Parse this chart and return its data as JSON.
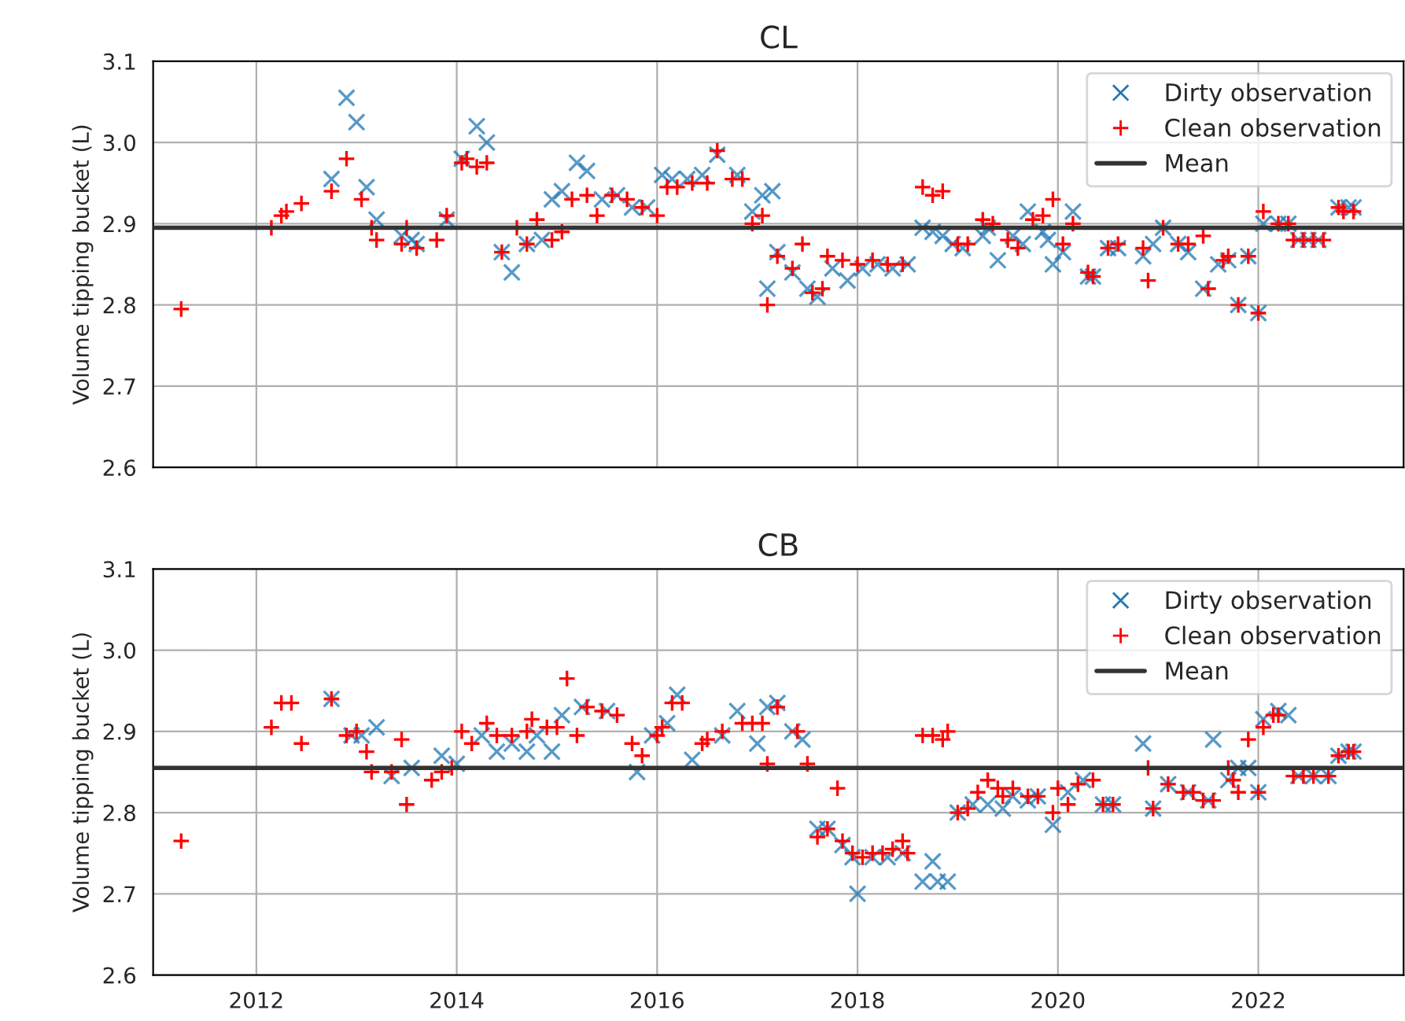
{
  "chart_data": [
    {
      "type": "scatter",
      "title": "CL",
      "ylabel": "Volume tipping bucket (L)",
      "xlim": [
        2010.97,
        2023.45
      ],
      "xticks": [
        2012,
        2014,
        2016,
        2018,
        2020,
        2022
      ],
      "ylim": [
        2.6,
        3.1
      ],
      "yticks": [
        2.6,
        2.7,
        2.8,
        2.9,
        {
          "value": 3,
          "label": "3.0"
        },
        3.1
      ],
      "grid": true,
      "legend": "top right",
      "tick_labels": "y",
      "series": [
        {
          "name": "Dirty observation",
          "color": "#1f77b4",
          "marker": "cross",
          "x": [
            2012.75,
            2012.9,
            2013.0,
            2013.1,
            2013.2,
            2013.45,
            2013.55,
            2013.6,
            2013.9,
            2014.05,
            2014.2,
            2014.3,
            2014.45,
            2014.55,
            2014.7,
            2014.85,
            2014.95,
            2015.05,
            2015.2,
            2015.3,
            2015.45,
            2015.6,
            2015.75,
            2015.9,
            2016.05,
            2016.15,
            2016.3,
            2016.45,
            2016.6,
            2016.8,
            2016.95,
            2017.05,
            2017.1,
            2017.15,
            2017.2,
            2017.35,
            2017.5,
            2017.6,
            2017.75,
            2017.9,
            2018.05,
            2018.2,
            2018.35,
            2018.5,
            2018.65,
            2018.75,
            2018.85,
            2018.95,
            2019.05,
            2019.25,
            2019.3,
            2019.4,
            2019.55,
            2019.65,
            2019.7,
            2019.85,
            2019.9,
            2019.95,
            2020.05,
            2020.15,
            2020.3,
            2020.35,
            2020.5,
            2020.6,
            2020.85,
            2020.95,
            2021.05,
            2021.2,
            2021.3,
            2021.45,
            2021.6,
            2021.7,
            2021.8,
            2021.9,
            2022.0,
            2022.05,
            2022.2,
            2022.3,
            2022.4,
            2022.5,
            2022.6,
            2022.8,
            2022.9,
            2022.95
          ],
          "values": [
            2.955,
            3.055,
            3.025,
            2.945,
            2.905,
            2.885,
            2.88,
            2.875,
            2.905,
            2.98,
            3.02,
            3.0,
            2.865,
            2.84,
            2.875,
            2.88,
            2.93,
            2.94,
            2.975,
            2.965,
            2.93,
            2.935,
            2.92,
            2.92,
            2.96,
            2.955,
            2.955,
            2.96,
            2.985,
            2.96,
            2.915,
            2.935,
            2.82,
            2.94,
            2.865,
            2.84,
            2.82,
            2.81,
            2.845,
            2.83,
            2.845,
            2.85,
            2.845,
            2.85,
            2.895,
            2.89,
            2.885,
            2.875,
            2.87,
            2.885,
            2.895,
            2.855,
            2.885,
            2.875,
            2.915,
            2.89,
            2.88,
            2.85,
            2.865,
            2.915,
            2.835,
            2.835,
            2.87,
            2.87,
            2.86,
            2.875,
            2.895,
            2.875,
            2.865,
            2.82,
            2.85,
            2.855,
            2.8,
            2.86,
            2.79,
            2.9,
            2.9,
            2.9,
            2.88,
            2.88,
            2.88,
            2.92,
            2.92,
            2.92
          ]
        },
        {
          "name": "Clean observation",
          "color": "#ff0000",
          "marker": "plus",
          "x": [
            2011.25,
            2012.15,
            2012.25,
            2012.3,
            2012.45,
            2012.75,
            2012.9,
            2013.05,
            2013.15,
            2013.2,
            2013.45,
            2013.5,
            2013.6,
            2013.8,
            2013.9,
            2014.05,
            2014.1,
            2014.2,
            2014.3,
            2014.45,
            2014.6,
            2014.7,
            2014.8,
            2014.95,
            2015.05,
            2015.15,
            2015.3,
            2015.4,
            2015.55,
            2015.7,
            2015.85,
            2016.0,
            2016.1,
            2016.2,
            2016.35,
            2016.5,
            2016.6,
            2016.75,
            2016.85,
            2016.95,
            2017.05,
            2017.1,
            2017.2,
            2017.35,
            2017.45,
            2017.55,
            2017.65,
            2017.7,
            2017.85,
            2018.0,
            2018.15,
            2018.3,
            2018.45,
            2018.65,
            2018.75,
            2018.85,
            2019.0,
            2019.1,
            2019.25,
            2019.35,
            2019.5,
            2019.6,
            2019.75,
            2019.85,
            2019.95,
            2020.05,
            2020.15,
            2020.3,
            2020.35,
            2020.5,
            2020.6,
            2020.85,
            2020.9,
            2021.05,
            2021.2,
            2021.3,
            2021.45,
            2021.5,
            2021.65,
            2021.7,
            2021.8,
            2021.9,
            2022.0,
            2022.05,
            2022.2,
            2022.3,
            2022.35,
            2022.45,
            2022.55,
            2022.65,
            2022.8,
            2022.85,
            2022.95
          ],
          "values": [
            2.795,
            2.895,
            2.91,
            2.915,
            2.925,
            2.94,
            2.98,
            2.93,
            2.895,
            2.88,
            2.875,
            2.895,
            2.87,
            2.88,
            2.91,
            2.975,
            2.98,
            2.97,
            2.975,
            2.865,
            2.895,
            2.875,
            2.905,
            2.88,
            2.89,
            2.93,
            2.935,
            2.91,
            2.935,
            2.93,
            2.92,
            2.91,
            2.945,
            2.945,
            2.95,
            2.95,
            2.99,
            2.955,
            2.955,
            2.9,
            2.91,
            2.8,
            2.86,
            2.845,
            2.875,
            2.815,
            2.82,
            2.86,
            2.855,
            2.85,
            2.855,
            2.85,
            2.85,
            2.945,
            2.935,
            2.94,
            2.875,
            2.875,
            2.905,
            2.9,
            2.88,
            2.87,
            2.905,
            2.91,
            2.93,
            2.875,
            2.9,
            2.84,
            2.835,
            2.87,
            2.875,
            2.87,
            2.83,
            2.895,
            2.875,
            2.875,
            2.885,
            2.82,
            2.855,
            2.86,
            2.8,
            2.86,
            2.79,
            2.915,
            2.9,
            2.9,
            2.88,
            2.88,
            2.88,
            2.88,
            2.92,
            2.915,
            2.915
          ]
        }
      ],
      "ref_lines": [
        {
          "axis": "y",
          "value": 2.895,
          "label": "Mean",
          "color": "#333333"
        }
      ]
    },
    {
      "type": "scatter",
      "title": "CB",
      "ylabel": "Volume tipping bucket (L)",
      "xlim": [
        2010.97,
        2023.45
      ],
      "xticks": [
        2012,
        2014,
        2016,
        2018,
        2020,
        2022
      ],
      "ylim": [
        2.6,
        3.1
      ],
      "yticks": [
        2.6,
        2.7,
        2.8,
        2.9,
        {
          "value": 3,
          "label": "3.0"
        },
        3.1
      ],
      "grid": true,
      "legend": "top right",
      "series": [
        {
          "name": "Dirty observation",
          "color": "#1f77b4",
          "marker": "cross",
          "x": [
            2012.75,
            2012.95,
            2013.05,
            2013.2,
            2013.35,
            2013.55,
            2013.85,
            2014.0,
            2014.25,
            2014.4,
            2014.55,
            2014.7,
            2014.8,
            2014.95,
            2015.05,
            2015.25,
            2015.5,
            2015.8,
            2015.95,
            2016.1,
            2016.2,
            2016.35,
            2016.65,
            2016.8,
            2017.0,
            2017.1,
            2017.2,
            2017.35,
            2017.45,
            2017.6,
            2017.7,
            2017.85,
            2017.95,
            2018.0,
            2018.15,
            2018.3,
            2018.45,
            2018.65,
            2018.75,
            2018.8,
            2018.9,
            2019.0,
            2019.15,
            2019.3,
            2019.45,
            2019.55,
            2019.7,
            2019.8,
            2019.95,
            2020.1,
            2020.25,
            2020.45,
            2020.55,
            2020.85,
            2020.95,
            2021.1,
            2021.3,
            2021.5,
            2021.55,
            2021.7,
            2021.8,
            2021.9,
            2022.0,
            2022.05,
            2022.2,
            2022.3,
            2022.4,
            2022.55,
            2022.7,
            2022.8,
            2022.9,
            2022.95
          ],
          "values": [
            2.94,
            2.895,
            2.895,
            2.905,
            2.845,
            2.855,
            2.87,
            2.86,
            2.895,
            2.875,
            2.885,
            2.875,
            2.895,
            2.875,
            2.92,
            2.93,
            2.925,
            2.85,
            2.895,
            2.91,
            2.945,
            2.865,
            2.895,
            2.925,
            2.885,
            2.93,
            2.935,
            2.9,
            2.89,
            2.78,
            2.78,
            2.76,
            2.745,
            2.7,
            2.745,
            2.745,
            2.75,
            2.715,
            2.74,
            2.715,
            2.715,
            2.8,
            2.81,
            2.81,
            2.805,
            2.82,
            2.815,
            2.82,
            2.785,
            2.825,
            2.84,
            2.81,
            2.81,
            2.885,
            2.805,
            2.835,
            2.825,
            2.815,
            2.89,
            2.84,
            2.855,
            2.855,
            2.825,
            2.915,
            2.925,
            2.92,
            2.845,
            2.845,
            2.845,
            2.87,
            2.875,
            2.875
          ]
        },
        {
          "name": "Clean observation",
          "color": "#ff0000",
          "marker": "plus",
          "x": [
            2011.25,
            2012.15,
            2012.25,
            2012.35,
            2012.45,
            2012.75,
            2012.9,
            2013.0,
            2013.1,
            2013.15,
            2013.35,
            2013.45,
            2013.5,
            2013.75,
            2013.85,
            2013.95,
            2014.05,
            2014.15,
            2014.3,
            2014.4,
            2014.55,
            2014.7,
            2014.75,
            2014.9,
            2015.0,
            2015.1,
            2015.2,
            2015.3,
            2015.45,
            2015.6,
            2015.75,
            2015.85,
            2016.0,
            2016.05,
            2016.15,
            2016.25,
            2016.45,
            2016.5,
            2016.65,
            2016.85,
            2016.95,
            2017.05,
            2017.1,
            2017.2,
            2017.4,
            2017.5,
            2017.6,
            2017.7,
            2017.8,
            2017.85,
            2017.95,
            2018.05,
            2018.15,
            2018.25,
            2018.35,
            2018.45,
            2018.5,
            2018.65,
            2018.75,
            2018.85,
            2018.9,
            2019.0,
            2019.1,
            2019.2,
            2019.3,
            2019.4,
            2019.45,
            2019.55,
            2019.7,
            2019.8,
            2019.95,
            2020.0,
            2020.1,
            2020.2,
            2020.35,
            2020.45,
            2020.55,
            2020.9,
            2020.95,
            2021.1,
            2021.25,
            2021.35,
            2021.45,
            2021.55,
            2021.7,
            2021.75,
            2021.8,
            2021.9,
            2022.0,
            2022.05,
            2022.15,
            2022.2,
            2022.35,
            2022.45,
            2022.55,
            2022.7,
            2022.8,
            2022.9,
            2022.95
          ],
          "values": [
            2.765,
            2.905,
            2.935,
            2.935,
            2.885,
            2.94,
            2.895,
            2.9,
            2.875,
            2.85,
            2.85,
            2.89,
            2.81,
            2.84,
            2.85,
            2.855,
            2.9,
            2.885,
            2.91,
            2.895,
            2.895,
            2.9,
            2.915,
            2.905,
            2.905,
            2.965,
            2.895,
            2.93,
            2.925,
            2.92,
            2.885,
            2.87,
            2.895,
            2.905,
            2.935,
            2.935,
            2.885,
            2.89,
            2.9,
            2.91,
            2.91,
            2.91,
            2.86,
            2.93,
            2.9,
            2.86,
            2.77,
            2.78,
            2.83,
            2.765,
            2.75,
            2.745,
            2.75,
            2.75,
            2.755,
            2.765,
            2.75,
            2.895,
            2.895,
            2.89,
            2.9,
            2.8,
            2.805,
            2.825,
            2.84,
            2.83,
            2.82,
            2.83,
            2.82,
            2.82,
            2.8,
            2.83,
            2.81,
            2.835,
            2.84,
            2.81,
            2.81,
            2.855,
            2.805,
            2.835,
            2.825,
            2.825,
            2.815,
            2.815,
            2.855,
            2.84,
            2.825,
            2.89,
            2.825,
            2.905,
            2.92,
            2.92,
            2.845,
            2.845,
            2.845,
            2.845,
            2.87,
            2.875,
            2.875
          ]
        }
      ],
      "ref_lines": [
        {
          "axis": "y",
          "value": 2.855,
          "label": "Mean",
          "color": "#333333"
        }
      ]
    }
  ]
}
